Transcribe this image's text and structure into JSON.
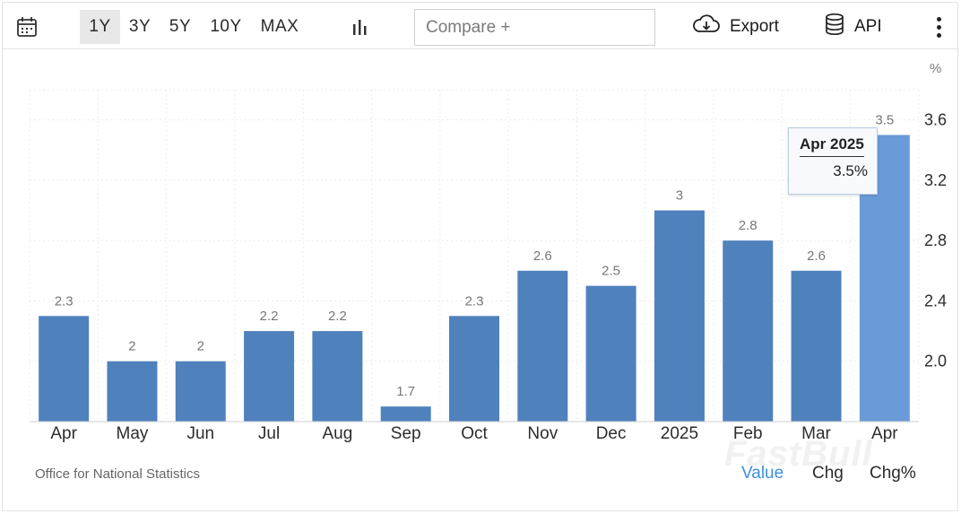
{
  "toolbar": {
    "ranges": [
      "1Y",
      "3Y",
      "5Y",
      "10Y",
      "MAX"
    ],
    "active_range": "1Y",
    "compare_placeholder": "Compare +",
    "export_label": "Export",
    "api_label": "API"
  },
  "icons": {
    "calendar": "calendar-icon",
    "chart_type": "bar-chart-icon",
    "export": "cloud-download-icon",
    "api": "database-icon",
    "more": "more-vertical-icon"
  },
  "chart_data": {
    "type": "bar",
    "unit": "%",
    "categories": [
      "Apr",
      "May",
      "Jun",
      "Jul",
      "Aug",
      "Sep",
      "Oct",
      "Nov",
      "Dec",
      "2025",
      "Feb",
      "Mar",
      "Apr"
    ],
    "values": [
      2.3,
      2,
      2,
      2.2,
      2.2,
      1.7,
      2.3,
      2.6,
      2.5,
      3,
      2.8,
      2.6,
      3.5
    ],
    "value_labels": [
      "2.3",
      "2",
      "2",
      "2.2",
      "2.2",
      "1.7",
      "2.3",
      "2.6",
      "2.5",
      "3",
      "2.8",
      "2.6",
      "3.5"
    ],
    "yticks": [
      "2.0",
      "2.4",
      "2.8",
      "3.2",
      "3.6"
    ],
    "ytick_values": [
      2.0,
      2.4,
      2.8,
      3.2,
      3.6
    ],
    "ylim": [
      1.6,
      3.8
    ],
    "axis_side": "right",
    "grid": true,
    "bar_color": "#4f81bd",
    "highlight_color": "#6a9bd8",
    "highlight_index": 12
  },
  "tooltip": {
    "title": "Apr 2025",
    "value": "3.5%"
  },
  "footer": {
    "source": "Office for National Statistics",
    "tabs": [
      "Value",
      "Chg",
      "Chg%"
    ],
    "active_tab": "Value",
    "watermark": "FastBull"
  }
}
